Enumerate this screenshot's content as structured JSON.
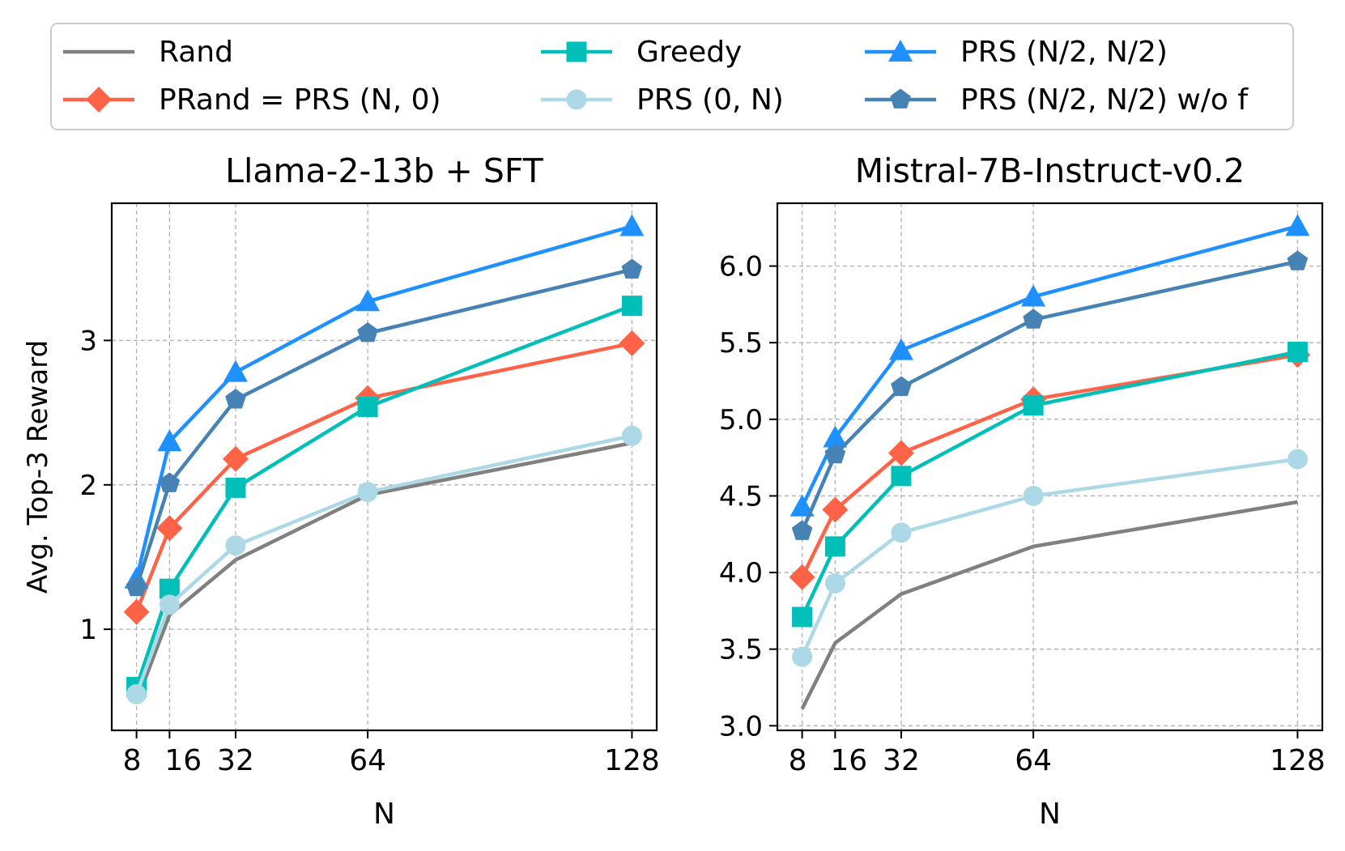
{
  "legend": [
    {
      "key": "rand",
      "label": "Rand",
      "color": "#808080",
      "marker": "none"
    },
    {
      "key": "prand",
      "label": "PRand = PRS (N, 0)",
      "color": "#FF6347",
      "marker": "diamond"
    },
    {
      "key": "greedy",
      "label": "Greedy",
      "color": "#00BFB8",
      "marker": "square"
    },
    {
      "key": "prs0n",
      "label": "PRS (0, N)",
      "color": "#ADD8E6",
      "marker": "circle"
    },
    {
      "key": "prshalf",
      "label": "PRS (N/2, N/2)",
      "color": "#1E90FF",
      "marker": "triangle"
    },
    {
      "key": "prswof",
      "label": "PRS (N/2, N/2) w/o f",
      "color": "#4682B4",
      "marker": "pentagon"
    }
  ],
  "chart_data": [
    {
      "type": "line",
      "title": "Llama-2-13b + SFT",
      "xlabel": "N",
      "ylabel": "Avg. Top-3 Reward",
      "x": [
        8,
        16,
        32,
        64,
        128
      ],
      "xticks": [
        "8",
        "16",
        "32",
        "64",
        "128"
      ],
      "xlim": [
        2,
        134
      ],
      "yticks": [
        1,
        2,
        3
      ],
      "ytick_labels": [
        "1",
        "2",
        "3"
      ],
      "ylim": [
        0.3,
        3.95
      ],
      "grid": true,
      "series": [
        {
          "key": "rand",
          "name": "Rand",
          "values": [
            0.5,
            1.1,
            1.48,
            1.93,
            2.29
          ]
        },
        {
          "key": "prand",
          "name": "PRand = PRS (N, 0)",
          "values": [
            1.12,
            1.7,
            2.18,
            2.6,
            2.98
          ]
        },
        {
          "key": "greedy",
          "name": "Greedy",
          "values": [
            0.6,
            1.28,
            1.98,
            2.54,
            3.24
          ]
        },
        {
          "key": "prs0n",
          "name": "PRS (0, N)",
          "values": [
            0.55,
            1.17,
            1.58,
            1.95,
            2.34
          ]
        },
        {
          "key": "prshalf",
          "name": "PRS (N/2, N/2)",
          "values": [
            1.35,
            2.3,
            2.78,
            3.27,
            3.79
          ]
        },
        {
          "key": "prswof",
          "name": "PRS (N/2, N/2) w/o f",
          "values": [
            1.29,
            2.01,
            2.59,
            3.05,
            3.49
          ]
        }
      ]
    },
    {
      "type": "line",
      "title": "Mistral-7B-Instruct-v0.2",
      "xlabel": "N",
      "ylabel": "",
      "x": [
        8,
        16,
        32,
        64,
        128
      ],
      "xticks": [
        "8",
        "16",
        "32",
        "64",
        "128"
      ],
      "xlim": [
        2,
        134
      ],
      "yticks": [
        3.0,
        3.5,
        4.0,
        4.5,
        5.0,
        5.5,
        6.0
      ],
      "ytick_labels": [
        "3.0",
        "3.5",
        "4.0",
        "4.5",
        "5.0",
        "5.5",
        "6.0"
      ],
      "ylim": [
        2.97,
        6.41
      ],
      "grid": true,
      "series": [
        {
          "key": "rand",
          "name": "Rand",
          "values": [
            3.11,
            3.54,
            3.86,
            4.17,
            4.46
          ]
        },
        {
          "key": "prand",
          "name": "PRand = PRS (N, 0)",
          "values": [
            3.97,
            4.41,
            4.78,
            5.13,
            5.42
          ]
        },
        {
          "key": "greedy",
          "name": "Greedy",
          "values": [
            3.71,
            4.17,
            4.63,
            5.09,
            5.44
          ]
        },
        {
          "key": "prs0n",
          "name": "PRS (0, N)",
          "values": [
            3.45,
            3.93,
            4.26,
            4.5,
            4.74
          ]
        },
        {
          "key": "prshalf",
          "name": "PRS (N/2, N/2)",
          "values": [
            4.43,
            4.88,
            5.45,
            5.8,
            6.26
          ]
        },
        {
          "key": "prswof",
          "name": "PRS (N/2, N/2) w/o f",
          "values": [
            4.27,
            4.77,
            5.21,
            5.65,
            6.03
          ]
        }
      ]
    }
  ]
}
